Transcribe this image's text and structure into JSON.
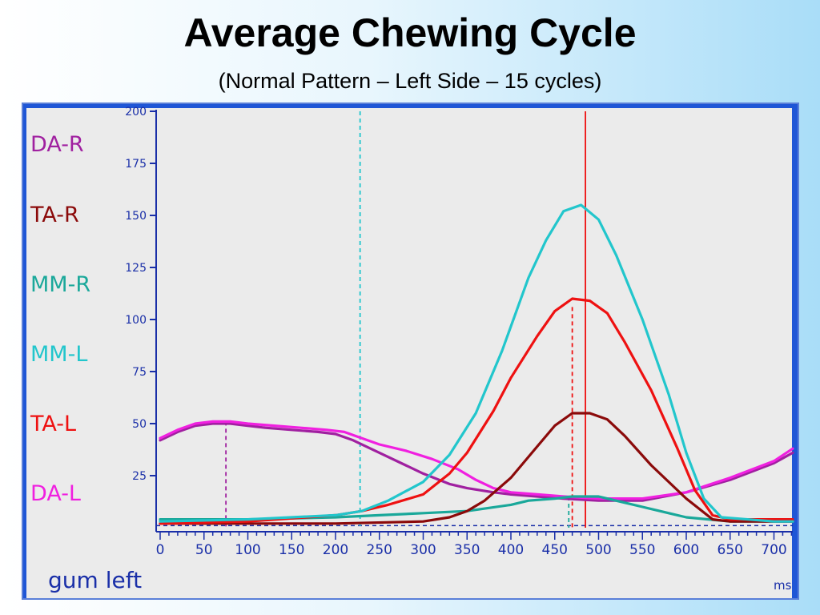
{
  "title": "Average Chewing Cycle",
  "subtitle": "(Normal Pattern – Left Side – 15 cycles)",
  "note": "gum left",
  "colors": {
    "DA-R": "#a020a0",
    "TA-R": "#8b0a0a",
    "MM-R": "#1aa89a",
    "MM-L": "#22c6cc",
    "TA-L": "#ee1111",
    "DA-L": "#f020e0",
    "axis": "#1a2fa8"
  },
  "chart_data": {
    "type": "line",
    "xlabel": "ms",
    "ylabel": "",
    "xlim": [
      0,
      730
    ],
    "ylim": [
      -3,
      200
    ],
    "x_ticks": [
      0,
      50,
      100,
      150,
      200,
      250,
      300,
      350,
      400,
      450,
      500,
      550,
      600,
      650,
      700
    ],
    "y_ticks": [
      25,
      50,
      75,
      100,
      125,
      150,
      175,
      200
    ],
    "legend": [
      "DA-R",
      "TA-R",
      "MM-R",
      "MM-L",
      "TA-L",
      "DA-L"
    ],
    "series": [
      {
        "name": "DA-R",
        "x": [
          0,
          20,
          40,
          60,
          80,
          100,
          120,
          150,
          180,
          200,
          220,
          250,
          280,
          300,
          330,
          350,
          380,
          400,
          430,
          460,
          500,
          550,
          600,
          650,
          700,
          730
        ],
        "values": [
          42,
          46,
          49,
          50,
          50,
          49,
          48,
          47,
          46,
          45,
          42,
          36,
          30,
          26,
          21,
          19,
          17,
          16,
          15,
          14,
          13,
          13,
          17,
          23,
          31,
          36
        ]
      },
      {
        "name": "TA-R",
        "x": [
          0,
          100,
          200,
          300,
          330,
          350,
          370,
          400,
          430,
          450,
          470,
          490,
          510,
          530,
          560,
          600,
          630,
          650,
          700,
          730
        ],
        "values": [
          2,
          2,
          2,
          3,
          5,
          8,
          13,
          24,
          39,
          49,
          55,
          55,
          52,
          44,
          30,
          14,
          4,
          3,
          3,
          3
        ]
      },
      {
        "name": "MM-R",
        "x": [
          0,
          100,
          200,
          250,
          300,
          350,
          400,
          420,
          450,
          470,
          500,
          530,
          550,
          580,
          600,
          650,
          700,
          730
        ],
        "values": [
          4,
          4,
          5,
          6,
          7,
          8,
          11,
          13,
          14,
          15,
          15,
          12,
          10,
          7,
          5,
          3,
          3,
          3
        ]
      },
      {
        "name": "MM-L",
        "x": [
          0,
          100,
          200,
          230,
          260,
          300,
          330,
          360,
          390,
          420,
          440,
          460,
          480,
          500,
          520,
          550,
          580,
          600,
          620,
          640,
          700,
          730
        ],
        "values": [
          3,
          4,
          6,
          8,
          13,
          22,
          35,
          55,
          85,
          120,
          138,
          152,
          155,
          148,
          131,
          100,
          64,
          36,
          14,
          5,
          3,
          3
        ]
      },
      {
        "name": "TA-L",
        "x": [
          0,
          100,
          200,
          230,
          260,
          300,
          330,
          350,
          380,
          400,
          430,
          450,
          470,
          490,
          510,
          530,
          560,
          590,
          610,
          630,
          650,
          700,
          730
        ],
        "values": [
          2,
          3,
          6,
          8,
          11,
          16,
          26,
          36,
          56,
          72,
          92,
          104,
          110,
          109,
          103,
          89,
          66,
          38,
          18,
          6,
          4,
          4,
          4
        ]
      },
      {
        "name": "DA-L",
        "x": [
          0,
          20,
          40,
          60,
          80,
          100,
          130,
          160,
          190,
          210,
          230,
          250,
          280,
          310,
          340,
          360,
          380,
          400,
          430,
          460,
          500,
          550,
          600,
          650,
          700,
          730
        ],
        "values": [
          43,
          47,
          50,
          51,
          51,
          50,
          49,
          48,
          47,
          46,
          43,
          40,
          37,
          33,
          28,
          23,
          19,
          17,
          16,
          15,
          14,
          14,
          17,
          24,
          32,
          38
        ]
      }
    ],
    "markers": [
      {
        "x": 75,
        "color_key": "DA-R",
        "style": "dashed",
        "top": 51
      },
      {
        "x": 228,
        "color_key": "MM-L",
        "style": "dashed",
        "top": 200
      },
      {
        "x": 466,
        "color_key": "MM-R",
        "style": "dashed",
        "top": 15
      },
      {
        "x": 470,
        "color_key": "TA-L",
        "style": "dashed",
        "top": 106
      },
      {
        "x": 485,
        "color_key": "TA-L",
        "style": "solid",
        "top": 200
      }
    ],
    "baseline": 1,
    "grid": false
  }
}
